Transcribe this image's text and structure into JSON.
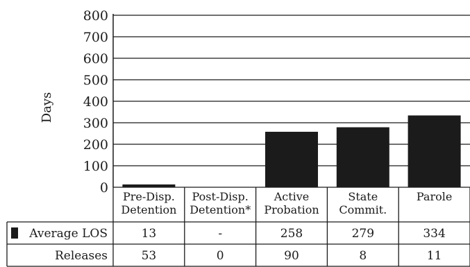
{
  "chart_data": {
    "type": "bar",
    "ylabel": "Days",
    "ylim": [
      0,
      800
    ],
    "yticks": [
      "0",
      "100",
      "200",
      "300",
      "400",
      "500",
      "600",
      "700",
      "800"
    ],
    "grid": true,
    "categories": [
      [
        "Pre-Disp.",
        "Detention"
      ],
      [
        "Post-Disp.",
        "Detention*"
      ],
      [
        "Active",
        "Probation"
      ],
      [
        "State",
        "Commit."
      ],
      [
        "Parole"
      ]
    ],
    "series": [
      {
        "name": "Average LOS",
        "color": "#1c1b1b",
        "values": [
          13,
          null,
          258,
          279,
          334
        ]
      }
    ],
    "table": {
      "rows": [
        {
          "label": "Average LOS",
          "legend_swatch": true,
          "cells": [
            "13",
            "-",
            "258",
            "279",
            "334"
          ]
        },
        {
          "label": "Releases",
          "legend_swatch": false,
          "cells": [
            "53",
            "0",
            "90",
            "8",
            "11"
          ]
        }
      ]
    }
  }
}
